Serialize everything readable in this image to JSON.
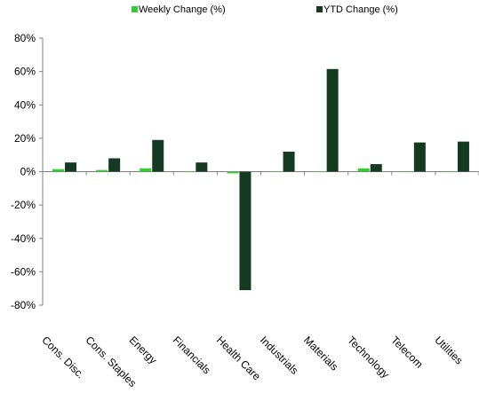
{
  "chart_data": {
    "type": "bar",
    "title": "",
    "xlabel": "",
    "ylabel": "",
    "categories": [
      "Cons. Disc.",
      "Cons. Staples",
      "Energy",
      "Financials",
      "Health Care",
      "Industrials",
      "Materials",
      "Technology",
      "Telecom",
      "Utilities"
    ],
    "series": [
      {
        "name": "Weekly Change (%)",
        "color": "#33cc33",
        "values": [
          1.5,
          1.0,
          2.0,
          -0.3,
          -1.0,
          -0.2,
          -0.3,
          2.0,
          -0.2,
          -0.2
        ]
      },
      {
        "name": "YTD Change (%)",
        "color": "#153a22",
        "values": [
          5.5,
          8.0,
          19.0,
          5.5,
          -71.0,
          12.0,
          61.5,
          4.5,
          17.5,
          18.0
        ]
      }
    ],
    "ylim": [
      -80,
      80
    ],
    "y_ticks": [
      -80,
      -60,
      -40,
      -20,
      0,
      20,
      40,
      60,
      80
    ],
    "y_tick_format": "percent",
    "grid": false,
    "legend_position": "top"
  }
}
